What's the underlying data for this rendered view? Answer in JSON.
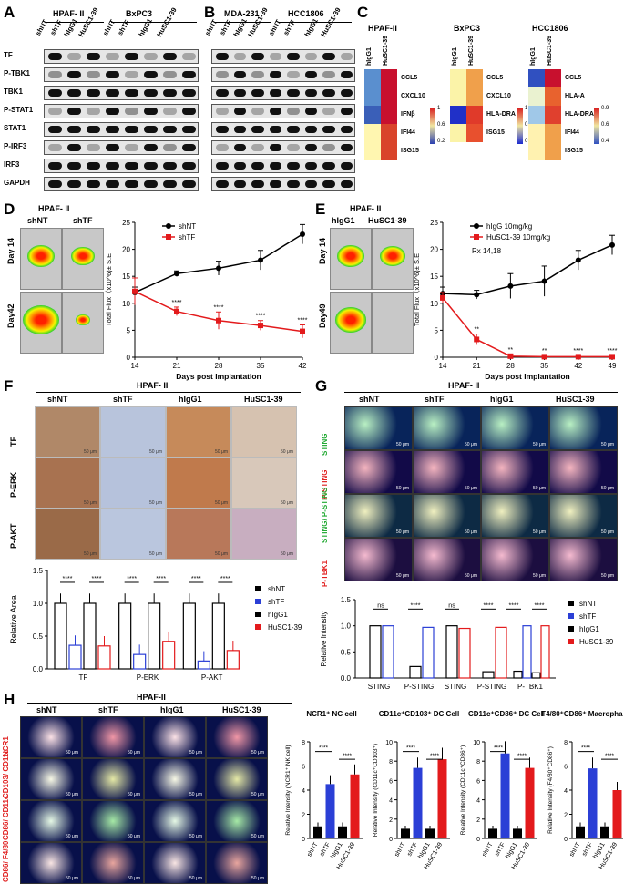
{
  "panels": {
    "A": {
      "letter": "A",
      "groups": [
        "HPAF- II",
        "BxPC3"
      ],
      "lanes": [
        "shNT",
        "shTF",
        "hIgG1",
        "HuSC1-39",
        "shNT",
        "shTF",
        "hIgG1",
        "HuSC1-39"
      ],
      "proteins": [
        "TF",
        "P-TBK1",
        "TBK1",
        "P-STAT1",
        "STAT1",
        "P-IRF3",
        "IRF3",
        "GAPDH"
      ]
    },
    "B": {
      "letter": "B",
      "groups": [
        "MDA-231",
        "HCC1806"
      ],
      "lanes": [
        "shNT",
        "shTF",
        "hIgG1",
        "HuSC1-39",
        "shNT",
        "shTF",
        "hIgG1",
        "HuSC1-39"
      ]
    },
    "C": {
      "letter": "C",
      "maps": [
        {
          "title": "HPAF-II",
          "cols": [
            "hIgG1",
            "HuSC1-39"
          ],
          "rows": [
            "CCL5",
            "CXCL10",
            "IFNβ",
            "IFI44",
            "ISG15"
          ],
          "scale": [
            "1",
            "0.6",
            "0.2"
          ]
        },
        {
          "title": "BxPC3",
          "cols": [
            "hIgG1",
            "HuSC1-39"
          ],
          "rows": [
            "CCL5",
            "CXCL10",
            "HLA-DRA",
            "ISG15"
          ],
          "scale": [
            "1",
            "0.5",
            "0"
          ]
        },
        {
          "title": "HCC1806",
          "cols": [
            "hIgG1",
            "HuSC1-39"
          ],
          "rows": [
            "CCL5",
            "HLA-A",
            "HLA-DRA",
            "IFI44",
            "ISG15"
          ],
          "scale": [
            "0.9",
            "0.6",
            "0.4"
          ]
        }
      ]
    },
    "D": {
      "letter": "D",
      "header": "HPAF- II",
      "cols": [
        "shNT",
        "shTF"
      ],
      "rows": [
        "Day 14",
        "Day42"
      ]
    },
    "E": {
      "letter": "E",
      "header": "HPAF- II",
      "cols": [
        "hIgG1",
        "HuSC1-39"
      ],
      "rows": [
        "Day 14",
        "Day49"
      ]
    },
    "F": {
      "letter": "F",
      "header": "HPAF- II",
      "cols": [
        "shNT",
        "shTF",
        "hIgG1",
        "HuSC1-39"
      ],
      "rows": [
        "TF",
        "P-ERK",
        "P-AKT"
      ],
      "scale_text": "50 μm"
    },
    "G": {
      "letter": "G",
      "header": "HPAF- II",
      "cols": [
        "shNT",
        "shTF",
        "hIgG1",
        "HuSC1-39"
      ],
      "rows": [
        "STING",
        "P-STING",
        "STING/ P-STING",
        "P-TBK1"
      ]
    },
    "H": {
      "letter": "H",
      "header": "HPAF-II",
      "cols": [
        "shNT",
        "shTF",
        "hIgG1",
        "HuSC1-39"
      ],
      "rows": [
        "NCR1",
        "CD103/ CD11c",
        "CD86/ CD11c",
        "CD86/ F4/80"
      ]
    }
  },
  "chart_data": [
    {
      "id": "D",
      "type": "line",
      "xlabel": "Days post Implantation",
      "ylabel": "Total Flux（x10^6)± S.E",
      "x": [
        14,
        21,
        28,
        35,
        42
      ],
      "ylim": [
        0,
        25
      ],
      "yticks": [
        0,
        5,
        10,
        15,
        20,
        25
      ],
      "series": [
        {
          "name": "shNT",
          "color": "#000000",
          "values": [
            12,
            15.5,
            16.5,
            18,
            22.8
          ],
          "err": [
            1,
            0.5,
            1.3,
            1.8,
            1.8
          ]
        },
        {
          "name": "shTF",
          "color": "#e31a1c",
          "values": [
            12.2,
            8.5,
            6.8,
            5.9,
            4.8
          ],
          "err": [
            2.5,
            0.8,
            1.6,
            0.9,
            1.2
          ]
        }
      ],
      "annotations": [
        "****",
        "****",
        "****",
        "****"
      ]
    },
    {
      "id": "E",
      "type": "line",
      "xlabel": "Days post Implantation",
      "ylabel": "Total Flux（x10^6)± S.E",
      "x": [
        14,
        21,
        28,
        35,
        42,
        49
      ],
      "ylim": [
        0,
        25
      ],
      "yticks": [
        0,
        5,
        10,
        15,
        20,
        25
      ],
      "note": "Rx 14,18",
      "series": [
        {
          "name": "hIgG 10mg/kg",
          "color": "#000000",
          "values": [
            11.8,
            11.6,
            13.2,
            14.1,
            18,
            20.8
          ],
          "err": [
            1.2,
            0.8,
            2.3,
            2.8,
            1.8,
            1.8
          ]
        },
        {
          "name": "HuSC1-39 10mg/kg",
          "color": "#e31a1c",
          "values": [
            11,
            3.3,
            0.2,
            0.1,
            0.1,
            0.1
          ],
          "err": [
            1,
            1,
            0.3,
            0.2,
            0.2,
            0.2
          ]
        }
      ],
      "annotations": [
        "**",
        "**",
        "**",
        "****",
        "****"
      ]
    },
    {
      "id": "F",
      "type": "bar",
      "ylabel": "Relative Area",
      "ylim": [
        0,
        1.5
      ],
      "yticks": [
        0.0,
        0.5,
        1.0,
        1.5
      ],
      "categories": [
        "TF",
        "P-ERK",
        "P-AKT"
      ],
      "series": [
        {
          "name": "shNT",
          "color": "#000000",
          "values": [
            1.0,
            1.0,
            1.0
          ]
        },
        {
          "name": "shTF",
          "color": "#2b3fd6",
          "values": [
            0.36,
            0.22,
            0.12
          ]
        },
        {
          "name": "hIgG1",
          "color": "#000000",
          "values": [
            1.0,
            1.0,
            1.0
          ]
        },
        {
          "name": "HuSC1-39",
          "color": "#e31a1c",
          "values": [
            0.35,
            0.42,
            0.28
          ]
        }
      ],
      "annotations": [
        "****",
        "****",
        "****",
        "****",
        "****",
        "****"
      ]
    },
    {
      "id": "G",
      "type": "bar",
      "ylabel": "Relative Intensity",
      "ylim": [
        0,
        1.5
      ],
      "yticks": [
        0.0,
        0.5,
        1.0,
        1.5
      ],
      "categories": [
        "STING",
        "P-STING",
        "STING",
        "P-STING",
        "P-TBK1"
      ],
      "series": [
        {
          "name": "shNT",
          "color": "#000000"
        },
        {
          "name": "shTF",
          "color": "#2b3fd6"
        },
        {
          "name": "hIgG1",
          "color": "#000000"
        },
        {
          "name": "HuSC1-39",
          "color": "#e31a1c"
        }
      ],
      "bars": [
        {
          "cat": 0,
          "s": 0,
          "v": 1.0
        },
        {
          "cat": 0,
          "s": 1,
          "v": 1.0
        },
        {
          "cat": 1,
          "s": 0,
          "v": 0.22
        },
        {
          "cat": 1,
          "s": 1,
          "v": 0.97
        },
        {
          "cat": 2,
          "s": 2,
          "v": 1.0
        },
        {
          "cat": 2,
          "s": 3,
          "v": 0.95
        },
        {
          "cat": 3,
          "s": 2,
          "v": 0.12
        },
        {
          "cat": 3,
          "s": 3,
          "v": 0.97
        },
        {
          "cat": 4,
          "s": 0,
          "v": 0.13
        },
        {
          "cat": 4,
          "s": 1,
          "v": 1.0
        },
        {
          "cat": 4,
          "s": 2,
          "v": 0.1
        },
        {
          "cat": 4,
          "s": 3,
          "v": 1.0
        }
      ],
      "annotations": [
        "ns",
        "****",
        "ns",
        "****",
        "****",
        "****"
      ]
    },
    {
      "id": "H1",
      "type": "bar",
      "title": "NCR1⁺ NC cell",
      "ylabel": "Relative Intensity (NCR1⁺ NK cell)",
      "ylim": [
        0,
        8
      ],
      "yticks": [
        0,
        2,
        4,
        6,
        8
      ],
      "categories": [
        "shNT",
        "shTF",
        "hIgG1",
        "HuSC1-39"
      ],
      "values": [
        1.0,
        4.5,
        1.0,
        5.3
      ],
      "colors": [
        "#000000",
        "#2b3fd6",
        "#000000",
        "#e31a1c"
      ],
      "annotations": [
        "****",
        "****"
      ]
    },
    {
      "id": "H2",
      "type": "bar",
      "title": "CD11c⁺CD103⁺ DC Cell",
      "ylabel": "Relative Intensity (CD11c⁺CD103⁺)",
      "ylim": [
        0,
        10
      ],
      "yticks": [
        0,
        2,
        4,
        6,
        8,
        10
      ],
      "categories": [
        "shNT",
        "shTF",
        "hIgG1",
        "HuSC1-39"
      ],
      "values": [
        1.0,
        7.3,
        1.0,
        8.2
      ],
      "colors": [
        "#000000",
        "#2b3fd6",
        "#000000",
        "#e31a1c"
      ],
      "annotations": [
        "****",
        "****"
      ]
    },
    {
      "id": "H3",
      "type": "bar",
      "title": "CD11c⁺CD86⁺ DC Cell",
      "ylabel": "Relative Intensity (CD11c⁺CD86⁺)",
      "ylim": [
        0,
        10
      ],
      "yticks": [
        0,
        2,
        4,
        6,
        8,
        10
      ],
      "categories": [
        "shNT",
        "shTF",
        "hIgG1",
        "HuSC1-39"
      ],
      "values": [
        1.0,
        8.8,
        1.0,
        7.3
      ],
      "colors": [
        "#000000",
        "#2b3fd6",
        "#000000",
        "#e31a1c"
      ],
      "annotations": [
        "****",
        "****"
      ]
    },
    {
      "id": "H4",
      "type": "bar",
      "title": "F4/80⁺CD86⁺ Macrophage Cell",
      "ylabel": "Relative Intensity (F4/80⁺CD86⁺)",
      "ylim": [
        0,
        8
      ],
      "yticks": [
        0,
        2,
        4,
        6,
        8
      ],
      "categories": [
        "shNT",
        "shTF",
        "hIgG1",
        "HuSC1-39"
      ],
      "values": [
        1.0,
        5.8,
        1.0,
        4.0
      ],
      "colors": [
        "#000000",
        "#2b3fd6",
        "#000000",
        "#e31a1c"
      ],
      "annotations": [
        "****",
        "****"
      ]
    }
  ]
}
